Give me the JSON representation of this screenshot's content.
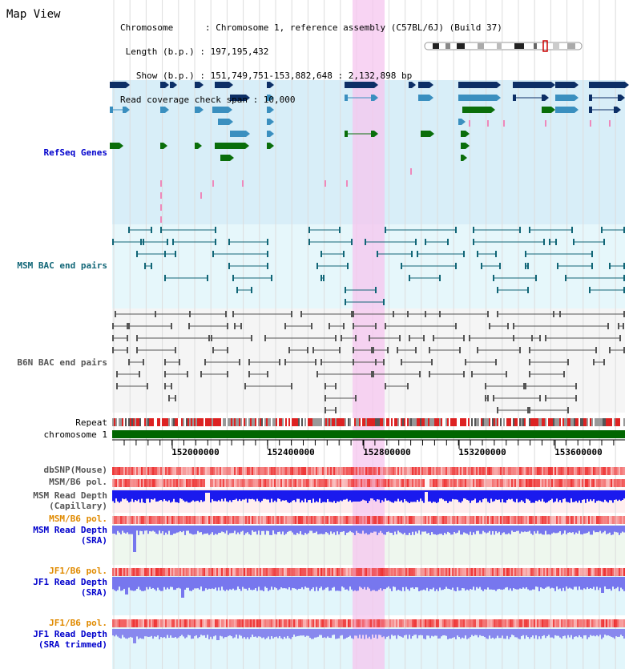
{
  "view": {
    "title": "Map View",
    "info_lines": [
      "Chromosome      : Chromosome 1, reference assembly (C57BL/6J) (Build 37)",
      " Length (b.p.) : 197,195,432",
      "   Show (b.p.) : 151,749,751-153,882,648 : 2,132,898 bp",
      "Read coverage check span : 10,000"
    ]
  },
  "tracks": {
    "refseq": "RefSeq Genes",
    "msm_bac": "MSM BAC end pairs",
    "b6n_bac": "B6N BAC end pairs",
    "repeat": "Repeat",
    "chromosome": "chromosome 1",
    "dbsnp": "dbSNP(Mouse)",
    "msm_b6_pol": "MSM/B6 pol.",
    "msm_depth_cap_1": "MSM Read Depth",
    "msm_depth_cap_2": "(Capillary)",
    "msm_b6_pol_2": "MSM/B6 pol.",
    "msm_depth_sra_1": "MSM Read Depth",
    "msm_depth_sra_2": "(SRA)",
    "jf1_b6_pol": "JF1/B6 pol.",
    "jf1_depth_sra_1": "JF1 Read Depth",
    "jf1_depth_sra_2": "(SRA)",
    "jf1_b6_pol_2": "JF1/B6 pol.",
    "jf1_depth_trim_1": "JF1 Read Depth",
    "jf1_depth_trim_2": "(SRA trimmed)"
  },
  "axis": {
    "ticks": [
      "152000000",
      "152400000",
      "152800000",
      "153200000",
      "153600000"
    ]
  },
  "colors": {
    "refseq_bg": "#d8eef8",
    "gene_dark": "#0d2f66",
    "gene_mid": "#3a8fbf",
    "gene_green": "#0a6e0a",
    "highlight": "#f6c6ef",
    "chromosome_bar": "#006600",
    "msm_bac": "#116677",
    "b6n_bac": "#555555",
    "snp": "#ee3333",
    "depth_blue": "#1a1aee",
    "depth_light": "#7777ee"
  }
}
